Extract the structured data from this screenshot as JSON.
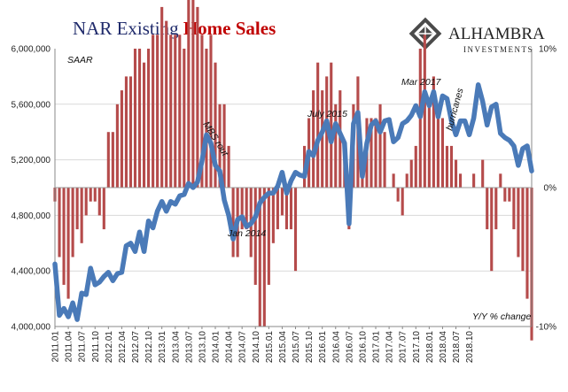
{
  "chart_data": {
    "type": "bar+line",
    "title_part1": "NAR Existing ",
    "title_part2": "Home Sales",
    "title_colors": {
      "part1": "#1f2a6b",
      "part2": "#c00000"
    },
    "logo": {
      "name": "ALHAMBRA",
      "sub": "INVESTMENTS"
    },
    "colors": {
      "line": "#4a7ab8",
      "bars": "#b54b4b",
      "axes": "#888888"
    },
    "left_axis": {
      "label": "SAAR",
      "min": 4000000,
      "max": 6000000,
      "ticks": [
        4000000,
        4400000,
        4800000,
        5200000,
        5600000,
        6000000
      ],
      "tick_labels": [
        "4,000,000",
        "4,400,000",
        "4,800,000",
        "5,200,000",
        "5,600,000",
        "6,000,000"
      ]
    },
    "right_axis": {
      "label": "Y/Y % change",
      "min": -10,
      "max": 10,
      "ticks": [
        -10,
        0,
        10
      ],
      "tick_labels": [
        "-10%",
        "0%",
        "10%"
      ]
    },
    "x_tick_labels": [
      "2011.01",
      "2011.04",
      "2011.07",
      "2011.10",
      "2012.01",
      "2012.04",
      "2012.07",
      "2012.10",
      "2013.01",
      "2013.04",
      "2013.07",
      "2013.10",
      "2014.01",
      "2014.04",
      "2014.07",
      "2014.10",
      "2015.01",
      "2015.04",
      "2015.07",
      "2015.10",
      "2016.01",
      "2016.04",
      "2016.07",
      "2016.10",
      "2017.01",
      "2017.04",
      "2017.07",
      "2017.10",
      "2018.01",
      "2018.04",
      "2018.07",
      "2018.10"
    ],
    "annotations": [
      "MBS rout",
      "Jan 2014",
      "July 2015",
      "Mar 2017",
      "hurricanes"
    ],
    "series": [
      {
        "name": "Existing Home Sales (SAAR)",
        "axis": "left",
        "type": "line",
        "values": [
          4450000,
          4080000,
          4130000,
          4070000,
          4170000,
          4050000,
          4240000,
          4230000,
          4420000,
          4300000,
          4320000,
          4360000,
          4390000,
          4330000,
          4380000,
          4390000,
          4580000,
          4600000,
          4540000,
          4680000,
          4540000,
          4760000,
          4710000,
          4830000,
          4900000,
          4830000,
          4900000,
          4880000,
          4940000,
          4950000,
          5030000,
          5000000,
          5040000,
          5190000,
          5380000,
          5320000,
          5160000,
          5120000,
          4910000,
          4800000,
          4630000,
          4770000,
          4790000,
          4720000,
          4740000,
          4790000,
          4890000,
          4930000,
          4960000,
          4960000,
          5010000,
          5110000,
          4960000,
          5050000,
          5110000,
          5090000,
          5080000,
          5260000,
          5230000,
          5340000,
          5400000,
          5480000,
          5330000,
          5460000,
          5390000,
          5320000,
          4740000,
          5460000,
          5540000,
          5080000,
          5320000,
          5450000,
          5480000,
          5400000,
          5480000,
          5490000,
          5330000,
          5360000,
          5460000,
          5480000,
          5520000,
          5590000,
          5510000,
          5690000,
          5590000,
          5690000,
          5510000,
          5660000,
          5640000,
          5480000,
          5380000,
          5480000,
          5480000,
          5380000,
          5500000,
          5740000,
          5620000,
          5450000,
          5580000,
          5600000,
          5390000,
          5360000,
          5340000,
          5300000,
          5160000,
          5280000,
          5300000,
          5120000
        ]
      },
      {
        "name": "Y/Y % change",
        "axis": "right",
        "type": "bar",
        "values": [
          -1,
          -5,
          -7,
          -8,
          -5,
          -3,
          -4,
          -2,
          -1,
          -1,
          -2,
          -3,
          4,
          4,
          6,
          7,
          8,
          8,
          10,
          10,
          9,
          10,
          11,
          11,
          13,
          12,
          11,
          11,
          11,
          10,
          14,
          15,
          13,
          11,
          10,
          11,
          9,
          6,
          6,
          3,
          -5,
          -5,
          -3,
          -3,
          -5,
          -7,
          -10,
          -10,
          -7,
          -4,
          -3,
          -2,
          -3,
          -3,
          -6,
          0,
          3,
          5,
          7,
          9,
          7,
          8,
          9,
          6,
          7,
          3,
          -3,
          6,
          8,
          2,
          5,
          5,
          5,
          6,
          4,
          0,
          1,
          -1,
          -2,
          1,
          2,
          3,
          10,
          11,
          6,
          8,
          6,
          5,
          3,
          3,
          2,
          1,
          0,
          0,
          1,
          0,
          2,
          -3,
          -6,
          -3,
          1,
          -1,
          -1,
          -3,
          -5,
          -6,
          -8,
          -11
        ]
      }
    ]
  }
}
